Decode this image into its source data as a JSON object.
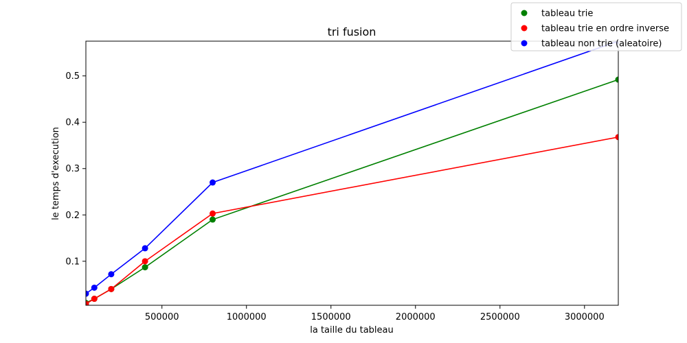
{
  "chart_data": {
    "type": "line",
    "title": "tri fusion",
    "xlabel": "la taille du tableau",
    "ylabel": "le temps d'execution",
    "xlim": [
      50000,
      3200000
    ],
    "ylim": [
      0.005,
      0.575
    ],
    "xticks": [
      500000,
      1000000,
      1500000,
      2000000,
      2500000,
      3000000
    ],
    "xtick_labels": [
      "500000",
      "1000000",
      "1500000",
      "2000000",
      "2500000",
      "3000000"
    ],
    "yticks": [
      0.1,
      0.2,
      0.3,
      0.4,
      0.5
    ],
    "ytick_labels": [
      "0.1",
      "0.2",
      "0.3",
      "0.4",
      "0.5"
    ],
    "grid": false,
    "legend_position": "top-right",
    "x": [
      50000,
      100000,
      200000,
      400000,
      800000,
      3200000
    ],
    "series": [
      {
        "name": "tableau trie",
        "color": "#008000",
        "values": [
          0.01,
          0.019,
          0.04,
          0.087,
          0.19,
          0.492
        ]
      },
      {
        "name": "tableau trie en ordre inverse",
        "color": "#ff0000",
        "values": [
          0.008,
          0.019,
          0.04,
          0.1,
          0.203,
          0.368
        ]
      },
      {
        "name": "tableau non trie (aleatoire)",
        "color": "#0000ff",
        "values": [
          0.03,
          0.043,
          0.072,
          0.128,
          0.27,
          0.575
        ]
      }
    ]
  }
}
